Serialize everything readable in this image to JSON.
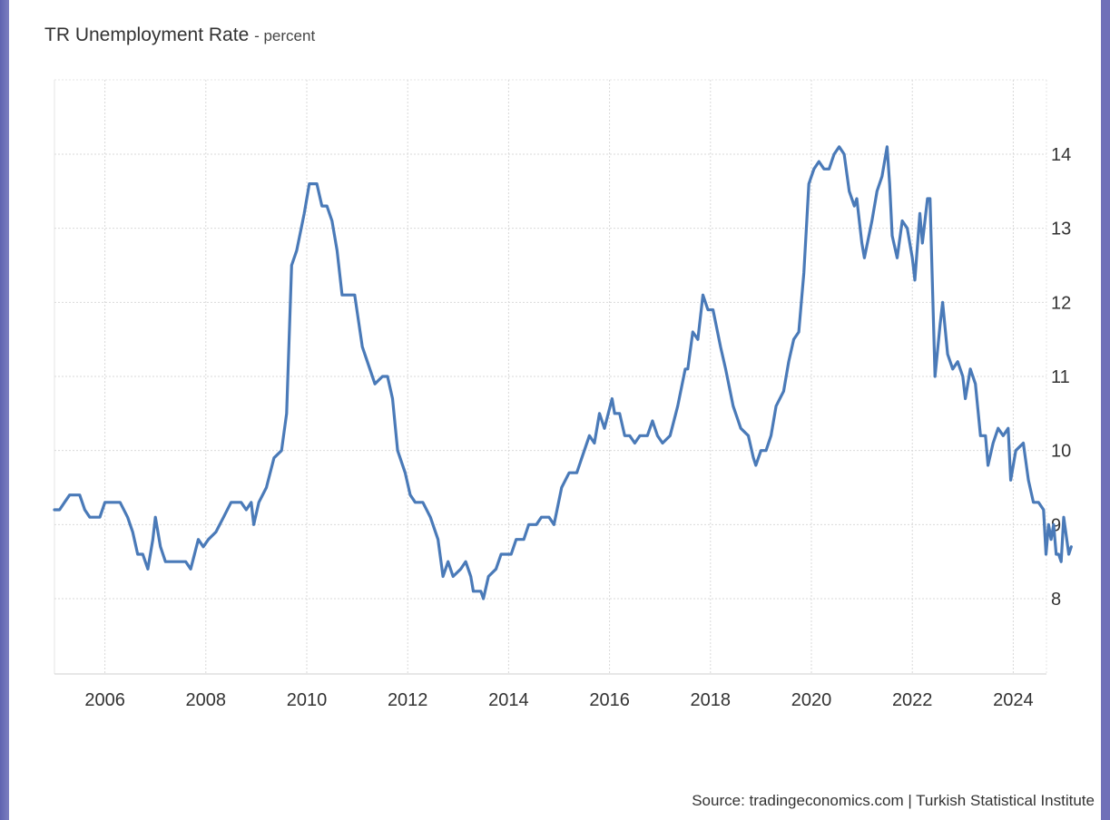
{
  "title": "TR Unemployment Rate",
  "unit_label": "- percent",
  "source": "Source: tradingeconomics.com | Turkish Statistical Institute",
  "colors": {
    "line": "#4a7ab8",
    "grid": "#d9d9d9",
    "text": "#333333"
  },
  "chart_data": {
    "type": "line",
    "title": "TR Unemployment Rate - percent",
    "xlabel": "",
    "ylabel": "",
    "xlim": [
      2005.0,
      2024.75
    ],
    "ylim": [
      7.0,
      15.0
    ],
    "x_ticks": [
      "2006",
      "2008",
      "2010",
      "2012",
      "2014",
      "2016",
      "2018",
      "2020",
      "2022",
      "2024"
    ],
    "y_ticks": [
      "8",
      "9",
      "10",
      "11",
      "12",
      "13",
      "14"
    ],
    "y_axis_side": "right",
    "grid": true,
    "legend": "none",
    "series": [
      {
        "points": [
          [
            2005.0,
            9.2
          ],
          [
            2005.1,
            9.2
          ],
          [
            2005.2,
            9.3
          ],
          [
            2005.3,
            9.4
          ],
          [
            2005.5,
            9.4
          ],
          [
            2005.6,
            9.2
          ],
          [
            2005.7,
            9.1
          ],
          [
            2005.9,
            9.1
          ],
          [
            2006.0,
            9.3
          ],
          [
            2006.3,
            9.3
          ],
          [
            2006.45,
            9.1
          ],
          [
            2006.55,
            8.9
          ],
          [
            2006.65,
            8.6
          ],
          [
            2006.75,
            8.6
          ],
          [
            2006.85,
            8.4
          ],
          [
            2006.95,
            8.8
          ],
          [
            2007.0,
            9.1
          ],
          [
            2007.1,
            8.7
          ],
          [
            2007.2,
            8.5
          ],
          [
            2007.4,
            8.5
          ],
          [
            2007.6,
            8.5
          ],
          [
            2007.7,
            8.4
          ],
          [
            2007.85,
            8.8
          ],
          [
            2007.95,
            8.7
          ],
          [
            2008.05,
            8.8
          ],
          [
            2008.2,
            8.9
          ],
          [
            2008.35,
            9.1
          ],
          [
            2008.5,
            9.3
          ],
          [
            2008.7,
            9.3
          ],
          [
            2008.8,
            9.2
          ],
          [
            2008.9,
            9.3
          ],
          [
            2008.95,
            9.0
          ],
          [
            2009.05,
            9.3
          ],
          [
            2009.2,
            9.5
          ],
          [
            2009.35,
            9.9
          ],
          [
            2009.5,
            10.0
          ],
          [
            2009.6,
            10.5
          ],
          [
            2009.7,
            12.5
          ],
          [
            2009.8,
            12.7
          ],
          [
            2009.95,
            13.2
          ],
          [
            2010.05,
            13.6
          ],
          [
            2010.2,
            13.6
          ],
          [
            2010.3,
            13.3
          ],
          [
            2010.4,
            13.3
          ],
          [
            2010.5,
            13.1
          ],
          [
            2010.6,
            12.7
          ],
          [
            2010.7,
            12.1
          ],
          [
            2010.8,
            12.1
          ],
          [
            2010.95,
            12.1
          ],
          [
            2011.1,
            11.4
          ],
          [
            2011.25,
            11.1
          ],
          [
            2011.35,
            10.9
          ],
          [
            2011.5,
            11.0
          ],
          [
            2011.6,
            11.0
          ],
          [
            2011.7,
            10.7
          ],
          [
            2011.8,
            10.0
          ],
          [
            2011.95,
            9.7
          ],
          [
            2012.05,
            9.4
          ],
          [
            2012.15,
            9.3
          ],
          [
            2012.3,
            9.3
          ],
          [
            2012.45,
            9.1
          ],
          [
            2012.6,
            8.8
          ],
          [
            2012.7,
            8.3
          ],
          [
            2012.8,
            8.5
          ],
          [
            2012.9,
            8.3
          ],
          [
            2013.05,
            8.4
          ],
          [
            2013.15,
            8.5
          ],
          [
            2013.25,
            8.3
          ],
          [
            2013.3,
            8.1
          ],
          [
            2013.45,
            8.1
          ],
          [
            2013.5,
            8.0
          ],
          [
            2013.6,
            8.3
          ],
          [
            2013.75,
            8.4
          ],
          [
            2013.85,
            8.6
          ],
          [
            2014.05,
            8.6
          ],
          [
            2014.15,
            8.8
          ],
          [
            2014.3,
            8.8
          ],
          [
            2014.4,
            9.0
          ],
          [
            2014.55,
            9.0
          ],
          [
            2014.65,
            9.1
          ],
          [
            2014.8,
            9.1
          ],
          [
            2014.9,
            9.0
          ],
          [
            2015.05,
            9.5
          ],
          [
            2015.2,
            9.7
          ],
          [
            2015.35,
            9.7
          ],
          [
            2015.5,
            10.0
          ],
          [
            2015.6,
            10.2
          ],
          [
            2015.7,
            10.1
          ],
          [
            2015.8,
            10.5
          ],
          [
            2015.9,
            10.3
          ],
          [
            2016.05,
            10.7
          ],
          [
            2016.1,
            10.5
          ],
          [
            2016.2,
            10.5
          ],
          [
            2016.3,
            10.2
          ],
          [
            2016.4,
            10.2
          ],
          [
            2016.5,
            10.1
          ],
          [
            2016.6,
            10.2
          ],
          [
            2016.75,
            10.2
          ],
          [
            2016.85,
            10.4
          ],
          [
            2016.95,
            10.2
          ],
          [
            2017.05,
            10.1
          ],
          [
            2017.2,
            10.2
          ],
          [
            2017.35,
            10.6
          ],
          [
            2017.5,
            11.1
          ],
          [
            2017.55,
            11.1
          ],
          [
            2017.65,
            11.6
          ],
          [
            2017.75,
            11.5
          ],
          [
            2017.85,
            12.1
          ],
          [
            2017.95,
            11.9
          ],
          [
            2018.05,
            11.9
          ],
          [
            2018.2,
            11.4
          ],
          [
            2018.3,
            11.1
          ],
          [
            2018.45,
            10.6
          ],
          [
            2018.55,
            10.4
          ],
          [
            2018.6,
            10.3
          ],
          [
            2018.75,
            10.2
          ],
          [
            2018.85,
            9.9
          ],
          [
            2018.9,
            9.8
          ],
          [
            2019.0,
            10.0
          ],
          [
            2019.1,
            10.0
          ],
          [
            2019.2,
            10.2
          ],
          [
            2019.3,
            10.6
          ],
          [
            2019.45,
            10.8
          ],
          [
            2019.55,
            11.2
          ],
          [
            2019.65,
            11.5
          ],
          [
            2019.75,
            11.6
          ],
          [
            2019.85,
            12.4
          ],
          [
            2019.95,
            13.6
          ],
          [
            2020.05,
            13.8
          ],
          [
            2020.15,
            13.9
          ],
          [
            2020.25,
            13.8
          ],
          [
            2020.35,
            13.8
          ],
          [
            2020.45,
            14.0
          ],
          [
            2020.55,
            14.1
          ],
          [
            2020.65,
            14.0
          ],
          [
            2020.75,
            13.5
          ],
          [
            2020.85,
            13.3
          ],
          [
            2020.9,
            13.4
          ],
          [
            2021.0,
            12.8
          ],
          [
            2021.05,
            12.6
          ],
          [
            2021.2,
            13.1
          ],
          [
            2021.3,
            13.5
          ],
          [
            2021.4,
            13.7
          ],
          [
            2021.5,
            14.1
          ],
          [
            2021.55,
            13.6
          ],
          [
            2021.6,
            12.9
          ],
          [
            2021.7,
            12.6
          ],
          [
            2021.8,
            13.1
          ],
          [
            2021.9,
            13.0
          ],
          [
            2022.0,
            12.6
          ],
          [
            2022.05,
            12.3
          ],
          [
            2022.15,
            13.2
          ],
          [
            2022.2,
            12.8
          ],
          [
            2022.3,
            13.4
          ],
          [
            2022.35,
            13.4
          ],
          [
            2022.45,
            11.0
          ],
          [
            2022.55,
            11.7
          ],
          [
            2022.6,
            12.0
          ],
          [
            2022.7,
            11.3
          ],
          [
            2022.8,
            11.1
          ],
          [
            2022.9,
            11.2
          ],
          [
            2023.0,
            11.0
          ],
          [
            2023.05,
            10.7
          ],
          [
            2023.15,
            11.1
          ],
          [
            2023.25,
            10.9
          ],
          [
            2023.35,
            10.2
          ],
          [
            2023.45,
            10.2
          ],
          [
            2023.5,
            9.8
          ],
          [
            2023.6,
            10.1
          ],
          [
            2023.7,
            10.3
          ],
          [
            2023.8,
            10.2
          ],
          [
            2023.9,
            10.3
          ],
          [
            2023.95,
            9.6
          ],
          [
            2024.05,
            10.0
          ],
          [
            2024.2,
            10.1
          ],
          [
            2024.3,
            9.6
          ],
          [
            2024.4,
            9.3
          ],
          [
            2024.5,
            9.3
          ],
          [
            2024.6,
            9.2
          ],
          [
            2024.65,
            8.6
          ],
          [
            2024.7,
            9.0
          ],
          [
            2024.75,
            8.8
          ],
          [
            2024.8,
            9.0
          ],
          [
            2024.85,
            8.6
          ],
          [
            2024.9,
            8.6
          ],
          [
            2024.95,
            8.5
          ],
          [
            2025.0,
            9.1
          ],
          [
            2025.1,
            8.6
          ],
          [
            2025.15,
            8.7
          ]
        ]
      }
    ]
  }
}
